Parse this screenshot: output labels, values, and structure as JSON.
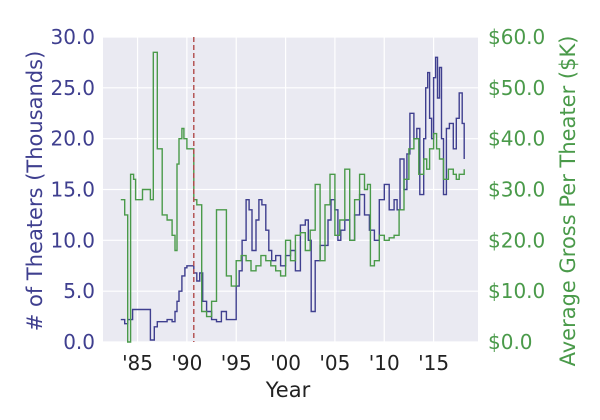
{
  "chart_data": {
    "type": "line",
    "title": "",
    "xlabel": "Year",
    "ylabel_left": "# of Theaters (Thousands)",
    "ylabel_right": "Average Gross Per Theater ($K)",
    "xlim": [
      1981.5,
      2019.5
    ],
    "ylim_left": [
      0,
      30
    ],
    "ylim_right": [
      0,
      60
    ],
    "grid": true,
    "x_ticks": [
      {
        "value": 1985,
        "label": "'85"
      },
      {
        "value": 1990,
        "label": "'90"
      },
      {
        "value": 1995,
        "label": "'95"
      },
      {
        "value": 2000,
        "label": "'00"
      },
      {
        "value": 2005,
        "label": "'05"
      },
      {
        "value": 2010,
        "label": "'10"
      },
      {
        "value": 2015,
        "label": "'15"
      }
    ],
    "y_ticks_left": [
      {
        "value": 0,
        "label": "0.0"
      },
      {
        "value": 5,
        "label": "5.0"
      },
      {
        "value": 10,
        "label": "10.0"
      },
      {
        "value": 15,
        "label": "15.0"
      },
      {
        "value": 20,
        "label": "20.0"
      },
      {
        "value": 25,
        "label": "25.0"
      },
      {
        "value": 30,
        "label": "30.0"
      }
    ],
    "y_ticks_right": [
      {
        "value": 0,
        "label": "$0.0"
      },
      {
        "value": 10,
        "label": "$10.0"
      },
      {
        "value": 20,
        "label": "$20.0"
      },
      {
        "value": 30,
        "label": "$30.0"
      },
      {
        "value": 40,
        "label": "$40.0"
      },
      {
        "value": 50,
        "label": "$50.0"
      },
      {
        "value": 60,
        "label": "$60.0"
      }
    ],
    "vline": {
      "x": 1990.7,
      "color": "#b04a4a"
    },
    "series": [
      {
        "name": "# of Theaters (Thousands)",
        "axis": "left",
        "color": "#3f3f8f",
        "step": true,
        "x": [
          1983.3,
          1983.7,
          1984,
          1984.5,
          1985,
          1986,
          1986.3,
          1986.7,
          1987,
          1987.5,
          1988,
          1988.5,
          1988.8,
          1989,
          1989.2,
          1989.5,
          1989.8,
          1990,
          1990.7,
          1991,
          1991.3,
          1991.6,
          1992,
          1992.5,
          1993,
          1993.5,
          1994,
          1994.5,
          1995,
          1995.3,
          1995.6,
          1996,
          1996.3,
          1996.6,
          1997,
          1997.3,
          1997.6,
          1998,
          1998.3,
          1998.6,
          1999,
          1999.5,
          2000,
          2000.5,
          2001,
          2001.5,
          2002,
          2002.3,
          2002.6,
          2003,
          2003.5,
          2004,
          2004.3,
          2004.6,
          2005,
          2005.3,
          2005.6,
          2006,
          2006.5,
          2007,
          2007.5,
          2008,
          2008.5,
          2009,
          2009.5,
          2010,
          2010.5,
          2011,
          2011.3,
          2011.6,
          2012,
          2012.3,
          2012.6,
          2013,
          2013.3,
          2013.6,
          2014,
          2014.2,
          2014.4,
          2014.6,
          2014.8,
          2015,
          2015.2,
          2015.4,
          2015.6,
          2015.8,
          2016,
          2016.3,
          2016.6,
          2017,
          2017.3,
          2017.6,
          2017.9,
          2018.1
        ],
        "values": [
          2.2,
          1.8,
          2.2,
          3.2,
          3.2,
          3.2,
          0.2,
          1.5,
          2.0,
          2.0,
          2.2,
          2.0,
          3.0,
          4.0,
          5.0,
          6.5,
          7.3,
          7.5,
          6.8,
          6.0,
          6.8,
          4.0,
          3.0,
          2.2,
          2.0,
          3.0,
          2.2,
          2.2,
          5.5,
          7.0,
          10.0,
          14.0,
          13.0,
          9.0,
          12.0,
          14.0,
          13.5,
          11.0,
          9.0,
          8.0,
          8.5,
          7.5,
          8.5,
          9.0,
          7.0,
          11.5,
          12.0,
          10.0,
          3.0,
          8.0,
          9.5,
          9.5,
          12.0,
          14.0,
          13.0,
          10.0,
          11.0,
          12.0,
          10.0,
          12.5,
          14.5,
          12.5,
          11.0,
          10.0,
          14.0,
          15.5,
          13.0,
          14.0,
          13.0,
          18.0,
          15.0,
          18.5,
          22.5,
          20.0,
          21.0,
          14.5,
          20.0,
          25.0,
          26.5,
          22.0,
          20.0,
          26.0,
          28.0,
          24.0,
          27.0,
          20.0,
          14.5,
          21.0,
          21.5,
          19.0,
          22.0,
          24.5,
          21.5,
          18.0
        ]
      },
      {
        "name": "Average Gross Per Theater ($K)",
        "axis": "right",
        "color": "#4a9a4a",
        "step": true,
        "x": [
          1983.3,
          1983.7,
          1984,
          1984.3,
          1984.6,
          1984.8,
          1985.5,
          1986,
          1986.3,
          1986.6,
          1987,
          1987.5,
          1988,
          1988.5,
          1988.8,
          1989,
          1989.2,
          1989.5,
          1989.7,
          1990,
          1990.3,
          1990.7,
          1991,
          1991.5,
          1992,
          1992.5,
          1993,
          1993.5,
          1994,
          1994.5,
          1995,
          1995.5,
          1996,
          1996.5,
          1997,
          1997.5,
          1998,
          1998.5,
          1999,
          1999.5,
          2000,
          2000.5,
          2001,
          2001.5,
          2002,
          2002.5,
          2003,
          2003.5,
          2004,
          2004.5,
          2005,
          2005.5,
          2006,
          2006.5,
          2007,
          2007.5,
          2008,
          2008.3,
          2008.6,
          2009,
          2009.5,
          2010,
          2010.5,
          2011,
          2011.5,
          2012,
          2012.5,
          2013,
          2013.5,
          2014,
          2014.3,
          2014.6,
          2015,
          2015.3,
          2015.6,
          2016,
          2016.5,
          2017,
          2017.3,
          2017.6,
          2018.1
        ],
        "values": [
          28.0,
          25.0,
          0.0,
          33.0,
          32.0,
          28.0,
          30.0,
          30.0,
          28.0,
          57.0,
          38.0,
          25.0,
          24.0,
          21.0,
          18.0,
          35.0,
          40.0,
          42.0,
          40.0,
          38.0,
          38.0,
          28.0,
          27.0,
          6.0,
          5.0,
          8.0,
          26.0,
          26.0,
          13.0,
          11.0,
          16.0,
          17.0,
          16.0,
          14.0,
          15.0,
          17.0,
          16.0,
          15.0,
          14.0,
          13.0,
          20.0,
          16.0,
          21.0,
          21.5,
          18.0,
          22.0,
          31.0,
          16.0,
          27.0,
          33.0,
          21.0,
          24.0,
          34.0,
          20.0,
          28.0,
          33.0,
          30.0,
          31.0,
          15.0,
          16.0,
          21.0,
          20.0,
          20.5,
          21.0,
          26.0,
          32.0,
          38.0,
          40.0,
          33.0,
          36.0,
          34.0,
          38.0,
          41.0,
          38.0,
          36.0,
          32.0,
          34.0,
          33.0,
          32.0,
          33.0,
          34.0
        ]
      }
    ]
  }
}
